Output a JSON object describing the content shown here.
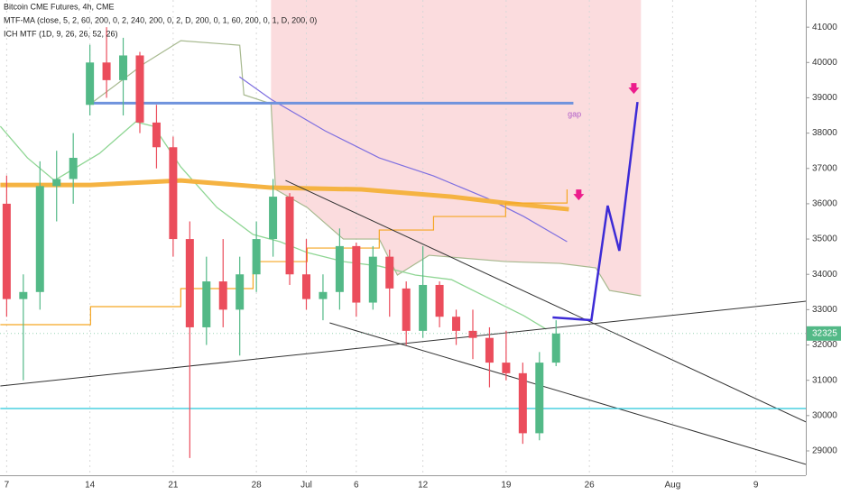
{
  "chart_data": {
    "type": "candlestick",
    "title": "Bitcoin CME Futures, 4h, CME",
    "indicators": [
      "MTF-MA (close, 5, 2, 60, 200, 0, 2, 240, 200, 0, 2, D, 200, 0, 1, 60, 200, 0, 1, D, 200, 0)",
      "ICH MTF (1D, 9, 26, 26, 52, 26)"
    ],
    "xlim": [
      -0.4,
      48
    ],
    "ylim": [
      28310,
      41770
    ],
    "xticks": [
      {
        "value": 0,
        "label": "7"
      },
      {
        "value": 5,
        "label": "14"
      },
      {
        "value": 10,
        "label": "21"
      },
      {
        "value": 15,
        "label": "28"
      },
      {
        "value": 18,
        "label": "Jul"
      },
      {
        "value": 21,
        "label": "6"
      },
      {
        "value": 25,
        "label": "12"
      },
      {
        "value": 30,
        "label": "19"
      },
      {
        "value": 35,
        "label": "26"
      },
      {
        "value": 40,
        "label": "Aug"
      },
      {
        "value": 45,
        "label": "9"
      }
    ],
    "yticks": [
      29000,
      30000,
      31000,
      32000,
      33000,
      34000,
      35000,
      36000,
      37000,
      38000,
      39000,
      40000,
      41000
    ],
    "grid": "x",
    "up_color": "#53b987",
    "down_color": "#eb4d5c",
    "candles": {
      "x": [
        0,
        1,
        2,
        3,
        4,
        5,
        6,
        7,
        8,
        9,
        10,
        11,
        12,
        13,
        14,
        15,
        16,
        17,
        18,
        19,
        20,
        21,
        22,
        23,
        24,
        25,
        26,
        27,
        28,
        29,
        30,
        31,
        32,
        33
      ],
      "open": [
        36000,
        33300,
        33500,
        36500,
        36700,
        38800,
        40000,
        39500,
        40200,
        38300,
        37600,
        35000,
        32500,
        33800,
        33000,
        34000,
        35000,
        36200,
        34000,
        33300,
        33500,
        34800,
        33200,
        34500,
        33600,
        32400,
        33700,
        32800,
        32400,
        32200,
        31500,
        31200,
        29500,
        31500
      ],
      "high": [
        36800,
        34000,
        37200,
        37500,
        38000,
        40500,
        41000,
        40700,
        40300,
        38800,
        37900,
        35500,
        34500,
        35000,
        34500,
        35500,
        36700,
        36300,
        35000,
        34000,
        35300,
        34900,
        34800,
        34700,
        33800,
        34800,
        33800,
        33000,
        33000,
        32500,
        32400,
        31500,
        31800,
        32700
      ],
      "low": [
        32800,
        31000,
        33000,
        35500,
        36000,
        38500,
        39000,
        38500,
        38000,
        37000,
        34500,
        28800,
        32000,
        32500,
        31700,
        33500,
        34500,
        33700,
        33000,
        32700,
        33000,
        32800,
        33000,
        32800,
        32000,
        32200,
        32500,
        32000,
        31600,
        30800,
        31000,
        29200,
        29300,
        31400
      ],
      "close": [
        33300,
        33500,
        36500,
        36700,
        37300,
        40000,
        39500,
        40200,
        38300,
        37600,
        35000,
        32500,
        33800,
        33000,
        34000,
        35000,
        36200,
        34000,
        33300,
        33500,
        34800,
        33200,
        34500,
        33600,
        32400,
        33700,
        32800,
        32400,
        32200,
        31500,
        31200,
        29500,
        31500,
        32325
      ]
    },
    "cloud": {
      "color": "#f9d0d3",
      "x": [
        15.88,
        16.15,
        18.05,
        20.22,
        22.38,
        23.47,
        25.37,
        29.97,
        33.22,
        35.39,
        36.21,
        38.1
      ],
      "values": [
        38830,
        36405,
        35894,
        35000,
        35000,
        33979,
        34540,
        34362,
        34311,
        34183,
        33545,
        33392
      ]
    },
    "lines": [
      {
        "color": "#a7b98f",
        "width": 1.2,
        "x": [
          5.04,
          8.29,
          10.46,
          14.0,
          14.25,
          15.88,
          16.15,
          18.05,
          20.22,
          22.38,
          23.47,
          25.37,
          29.97,
          33.22,
          35.39,
          36.21,
          38.1
        ],
        "values": [
          38830,
          39979,
          40617,
          40489,
          39085,
          38830,
          36405,
          35894,
          35000,
          35000,
          33979,
          34540,
          34362,
          34311,
          34183,
          33545,
          33392
        ]
      },
      {
        "color": "#8fd694",
        "width": 1.3,
        "x": [
          -0.38,
          1.25,
          2.87,
          5.58,
          7.75,
          8.83,
          10.46,
          12.63,
          14.8,
          16.42,
          18.05,
          20.22,
          22.38,
          24.55,
          26.72,
          28.89,
          31.06,
          32.41
        ],
        "values": [
          38192,
          37298,
          36660,
          37426,
          38319,
          38192,
          37043,
          35894,
          35128,
          34924,
          34617,
          34362,
          34234,
          33979,
          33851,
          33341,
          32830,
          32447
        ]
      },
      {
        "color": "#7e6fe0",
        "width": 1.2,
        "x": [
          13.98,
          15.88,
          19.13,
          22.38,
          25.64,
          28.89,
          31.06,
          33.66
        ],
        "values": [
          39596,
          38958,
          38064,
          37298,
          36787,
          36149,
          35639,
          34924
        ]
      },
      {
        "color": "#f5b342",
        "width": 5,
        "x": [
          -0.38,
          5.04,
          10.46,
          15.88,
          21.3,
          26.72,
          29.97,
          33.77
        ],
        "values": [
          36532,
          36532,
          36660,
          36456,
          36405,
          36200,
          36021,
          35843
        ]
      },
      {
        "color": "#f5a623",
        "width": 1.2,
        "step": true,
        "x": [
          -0.38,
          5.04,
          10.46,
          14.8,
          18.05,
          22.38,
          25.64,
          29.97,
          33.66
        ],
        "values": [
          32575,
          33086,
          33596,
          34362,
          34745,
          35256,
          35639,
          36021,
          36405
        ]
      },
      {
        "color": "#333333",
        "width": 1,
        "x": [
          -0.38,
          48.02
        ],
        "values": [
          30839,
          33239
        ]
      },
      {
        "color": "#333333",
        "width": 1,
        "x": [
          16.75,
          48.02
        ],
        "values": [
          36660,
          29818
        ]
      },
      {
        "color": "#333333",
        "width": 1,
        "x": [
          19.4,
          48.02
        ],
        "values": [
          32626,
          28617
        ]
      },
      {
        "color": "#26c6da",
        "width": 1.3,
        "x": [
          -0.38,
          48.02
        ],
        "values": [
          30200,
          30200
        ]
      },
      {
        "color": "#6f93dd",
        "width": 3,
        "x": [
          5.04,
          34.04
        ],
        "values": [
          38850,
          38850
        ]
      },
      {
        "color": "#3d2bd6",
        "width": 2.5,
        "x": [
          32.79,
          35.12,
          36.1,
          36.8,
          37.89
        ],
        "values": [
          32779,
          32703,
          35945,
          34668,
          38881
        ]
      }
    ],
    "annotations": [
      {
        "text": "gap",
        "x": 33.7,
        "y": 38520,
        "color": "#b05cc8"
      }
    ],
    "arrows": {
      "color": "#ec1c8c",
      "x": [
        34.36,
        37.67
      ],
      "values": [
        36200,
        39213
      ]
    }
  }
}
